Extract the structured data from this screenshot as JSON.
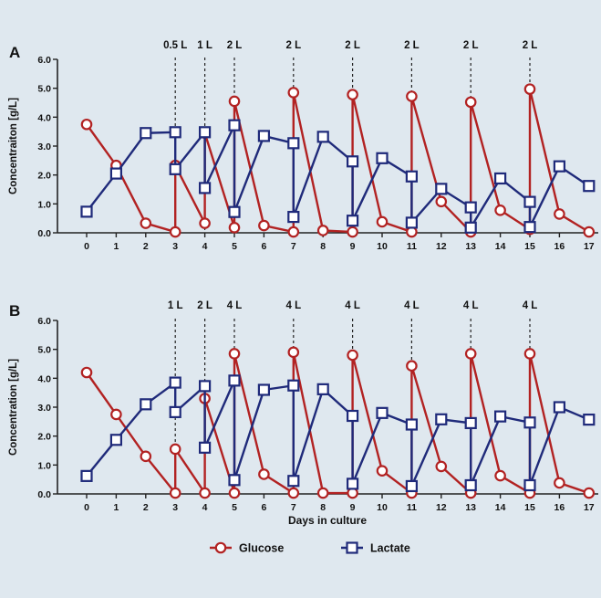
{
  "chart_data": [
    {
      "panel_label": "A",
      "type": "line",
      "ylabel": "Concentraiton [g/L]",
      "xlabel": "",
      "ylim": [
        0,
        6
      ],
      "yticks": [
        "0.0",
        "1.0",
        "2.0",
        "3.0",
        "4.0",
        "5.0",
        "6.0"
      ],
      "xticks": [
        "0",
        "1",
        "2",
        "3",
        "4",
        "5",
        "6",
        "7",
        "8",
        "9",
        "10",
        "11",
        "12",
        "13",
        "14",
        "15",
        "16",
        "17"
      ],
      "feeds": [
        {
          "day": 3,
          "label": "0.5 L"
        },
        {
          "day": 4,
          "label": "1 L"
        },
        {
          "day": 5,
          "label": "2 L"
        },
        {
          "day": 7,
          "label": "2 L"
        },
        {
          "day": 9,
          "label": "2 L"
        },
        {
          "day": 11,
          "label": "2 L"
        },
        {
          "day": 13,
          "label": "2 L"
        },
        {
          "day": 15,
          "label": "2 L"
        }
      ],
      "series": [
        {
          "name": "Glucose",
          "color": "#b22222",
          "marker": "circle",
          "points": [
            [
              0,
              3.75
            ],
            [
              1,
              2.33
            ],
            [
              2,
              0.33
            ],
            [
              3,
              0.03
            ],
            [
              3,
              2.33
            ],
            [
              4,
              0.33
            ],
            [
              4,
              3.45
            ],
            [
              5,
              0.18
            ],
            [
              5,
              4.55
            ],
            [
              6,
              0.25
            ],
            [
              7,
              0.03
            ],
            [
              7,
              4.85
            ],
            [
              8,
              0.08
            ],
            [
              9,
              0.03
            ],
            [
              9,
              4.78
            ],
            [
              10,
              0.38
            ],
            [
              11,
              0.03
            ],
            [
              11,
              4.72
            ],
            [
              12,
              1.08
            ],
            [
              13,
              0.03
            ],
            [
              13,
              4.52
            ],
            [
              14,
              0.78
            ],
            [
              15,
              0.12
            ],
            [
              15,
              4.97
            ],
            [
              16,
              0.65
            ],
            [
              17,
              0.03
            ]
          ]
        },
        {
          "name": "Lactate",
          "color": "#1f2a7a",
          "marker": "square",
          "points": [
            [
              0,
              0.73
            ],
            [
              1,
              2.05
            ],
            [
              2,
              3.45
            ],
            [
              3,
              3.48
            ],
            [
              3,
              2.2
            ],
            [
              4,
              3.48
            ],
            [
              4,
              1.55
            ],
            [
              5,
              3.72
            ],
            [
              5,
              0.72
            ],
            [
              6,
              3.35
            ],
            [
              7,
              3.1
            ],
            [
              7,
              0.55
            ],
            [
              8,
              3.32
            ],
            [
              9,
              2.47
            ],
            [
              9,
              0.42
            ],
            [
              10,
              2.58
            ],
            [
              11,
              1.95
            ],
            [
              11,
              0.35
            ],
            [
              12,
              1.52
            ],
            [
              13,
              0.88
            ],
            [
              13,
              0.18
            ],
            [
              14,
              1.88
            ],
            [
              15,
              1.07
            ],
            [
              15,
              0.2
            ],
            [
              16,
              2.3
            ],
            [
              17,
              1.62
            ]
          ]
        }
      ]
    },
    {
      "panel_label": "B",
      "type": "line",
      "ylabel": "Concentration [g/L]",
      "xlabel": "Days in culture",
      "ylim": [
        0,
        6
      ],
      "yticks": [
        "0.0",
        "1.0",
        "2.0",
        "3.0",
        "4.0",
        "5.0",
        "6.0"
      ],
      "xticks": [
        "0",
        "1",
        "2",
        "3",
        "4",
        "5",
        "6",
        "7",
        "8",
        "9",
        "10",
        "11",
        "12",
        "13",
        "14",
        "15",
        "16",
        "17"
      ],
      "feeds": [
        {
          "day": 3,
          "label": "1 L"
        },
        {
          "day": 4,
          "label": "2 L"
        },
        {
          "day": 5,
          "label": "4 L"
        },
        {
          "day": 7,
          "label": "4 L"
        },
        {
          "day": 9,
          "label": "4 L"
        },
        {
          "day": 11,
          "label": "4 L"
        },
        {
          "day": 13,
          "label": "4 L"
        },
        {
          "day": 15,
          "label": "4 L"
        }
      ],
      "series": [
        {
          "name": "Glucose",
          "color": "#b22222",
          "marker": "circle",
          "points": [
            [
              0,
              4.2
            ],
            [
              1,
              2.75
            ],
            [
              2,
              1.3
            ],
            [
              3,
              0.03
            ],
            [
              3,
              1.55
            ],
            [
              4,
              0.03
            ],
            [
              4,
              3.3
            ],
            [
              5,
              0.03
            ],
            [
              5,
              4.85
            ],
            [
              6,
              0.68
            ],
            [
              7,
              0.03
            ],
            [
              7,
              4.9
            ],
            [
              8,
              0.03
            ],
            [
              9,
              0.03
            ],
            [
              9,
              4.8
            ],
            [
              10,
              0.8
            ],
            [
              11,
              0.03
            ],
            [
              11,
              4.43
            ],
            [
              12,
              0.95
            ],
            [
              13,
              0.03
            ],
            [
              13,
              4.85
            ],
            [
              14,
              0.63
            ],
            [
              15,
              0.03
            ],
            [
              15,
              4.85
            ],
            [
              16,
              0.38
            ],
            [
              17,
              0.03
            ]
          ]
        },
        {
          "name": "Lactate",
          "color": "#1f2a7a",
          "marker": "square",
          "points": [
            [
              0,
              0.62
            ],
            [
              1,
              1.87
            ],
            [
              2,
              3.1
            ],
            [
              3,
              3.85
            ],
            [
              3,
              2.83
            ],
            [
              4,
              3.73
            ],
            [
              4,
              1.6
            ],
            [
              5,
              3.92
            ],
            [
              5,
              0.48
            ],
            [
              6,
              3.6
            ],
            [
              7,
              3.75
            ],
            [
              7,
              0.45
            ],
            [
              8,
              3.62
            ],
            [
              9,
              2.7
            ],
            [
              9,
              0.35
            ],
            [
              10,
              2.8
            ],
            [
              11,
              2.4
            ],
            [
              11,
              0.27
            ],
            [
              12,
              2.58
            ],
            [
              13,
              2.45
            ],
            [
              13,
              0.3
            ],
            [
              14,
              2.68
            ],
            [
              15,
              2.47
            ],
            [
              15,
              0.3
            ],
            [
              16,
              3.0
            ],
            [
              17,
              2.57
            ]
          ]
        }
      ]
    }
  ],
  "legend": {
    "placement": "bottom-center",
    "items": [
      {
        "label": "Glucose",
        "marker": "circle",
        "color": "#b22222"
      },
      {
        "label": "Lactate",
        "marker": "square",
        "color": "#1f2a7a"
      }
    ]
  }
}
